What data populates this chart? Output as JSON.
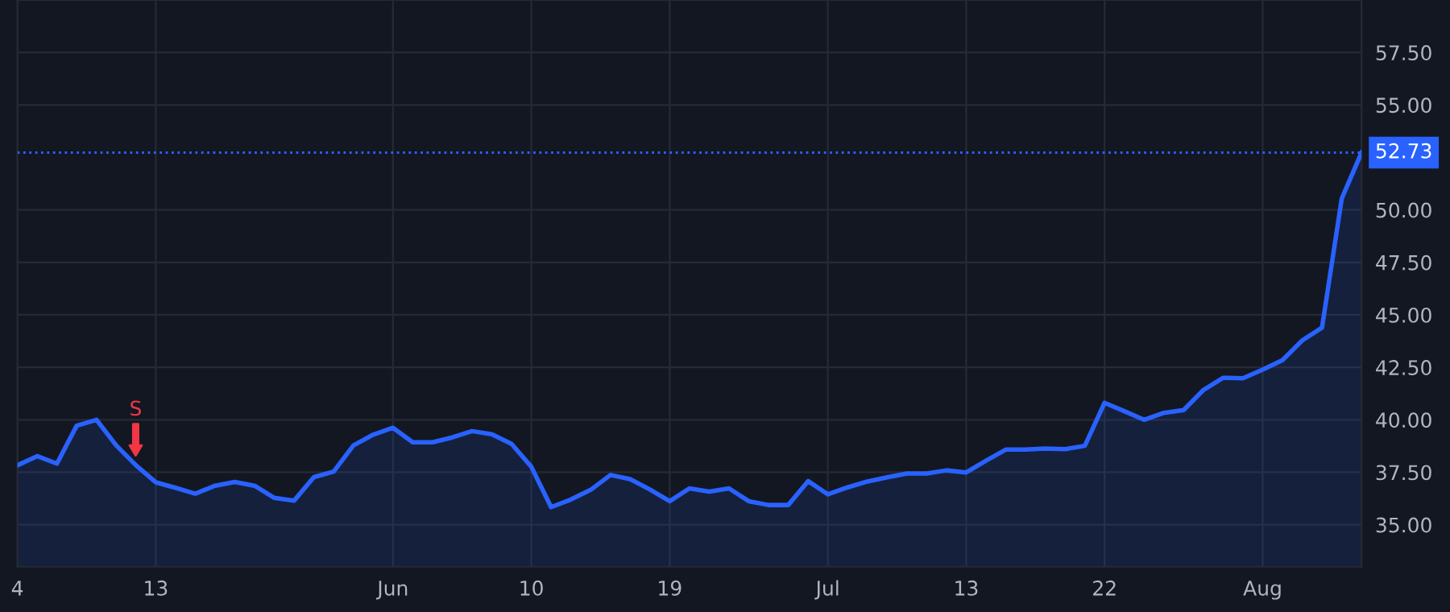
{
  "chart_data": {
    "type": "area",
    "categories": [
      "4",
      null,
      null,
      null,
      null,
      null,
      null,
      "13",
      null,
      null,
      null,
      null,
      null,
      null,
      null,
      null,
      null,
      null,
      null,
      "Jun",
      null,
      null,
      null,
      null,
      null,
      null,
      "10",
      null,
      null,
      null,
      null,
      null,
      null,
      "19",
      null,
      null,
      null,
      null,
      null,
      null,
      null,
      "Jul",
      null,
      null,
      null,
      null,
      null,
      null,
      "13",
      null,
      null,
      null,
      null,
      null,
      null,
      "22",
      null,
      null,
      null,
      null,
      null,
      null,
      null,
      "Aug",
      null,
      null,
      null,
      null,
      null
    ],
    "series": [
      {
        "color": "#2962ff",
        "values": [
          37.83,
          38.27,
          37.91,
          39.72,
          40.0,
          38.78,
          37.83,
          37.02,
          36.76,
          36.48,
          36.86,
          37.04,
          36.86,
          36.28,
          36.15,
          37.27,
          37.53,
          38.78,
          39.29,
          39.62,
          38.93,
          38.93,
          39.16,
          39.46,
          39.31,
          38.85,
          37.76,
          35.84,
          36.2,
          36.66,
          37.37,
          37.17,
          36.68,
          36.12,
          36.73,
          36.58,
          36.73,
          36.12,
          35.94,
          35.94,
          37.08,
          36.45,
          36.78,
          37.06,
          37.26,
          37.44,
          37.44,
          37.59,
          37.49,
          38.05,
          38.58,
          38.58,
          38.63,
          38.6,
          38.76,
          40.81,
          40.41,
          40.0,
          40.33,
          40.46,
          41.42,
          42.0,
          41.98,
          42.39,
          42.84,
          43.78,
          44.39,
          50.55,
          52.73
        ]
      }
    ],
    "ylim": [
      33.0,
      60.0
    ],
    "yticks": [
      {
        "value": 35,
        "label": "35.00"
      },
      {
        "value": 37.5,
        "label": "37.50"
      },
      {
        "value": 40,
        "label": "40.00"
      },
      {
        "value": 42.5,
        "label": "42.50"
      },
      {
        "value": 45,
        "label": "45.00"
      },
      {
        "value": 47.5,
        "label": "47.50"
      },
      {
        "value": 50,
        "label": "50.00"
      },
      {
        "value": 55,
        "label": "55.00"
      },
      {
        "value": 57.5,
        "label": "57.50"
      }
    ],
    "ref_lines": [
      {
        "axis": "y",
        "value": 52.73,
        "label": "52.73",
        "color": "#2962ff",
        "line_style": "dotted"
      }
    ],
    "annotations": [
      {
        "text": "S",
        "y": 38.3
      }
    ],
    "grid": true
  }
}
